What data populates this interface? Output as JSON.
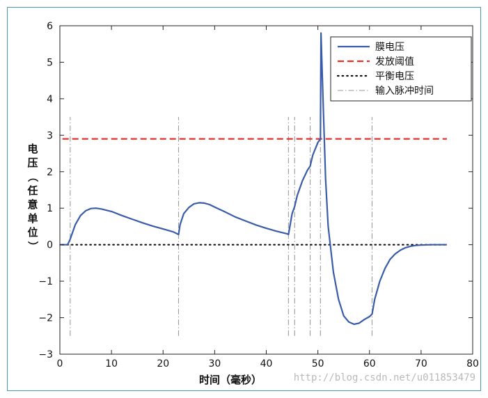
{
  "chart_data": {
    "type": "line",
    "xlabel": "时间（毫秒）",
    "ylabel": "电压（任意单位）",
    "xlim": [
      0,
      80
    ],
    "ylim": [
      -3,
      6
    ],
    "xticks": [
      0,
      10,
      20,
      30,
      40,
      50,
      60,
      70,
      80
    ],
    "yticks": [
      -3,
      -2,
      -1,
      0,
      1,
      2,
      3,
      4,
      5,
      6
    ],
    "grid": false,
    "legend_position": "top-right",
    "legend": [
      "膜电压",
      "发放阈值",
      "平衡电压",
      "输入脉冲时间"
    ],
    "series": [
      {
        "name": "膜电压",
        "style": "solid",
        "color": "#3a5ba8",
        "x": [
          0,
          1.5,
          2,
          3,
          4,
          5,
          6,
          7,
          8,
          10,
          12,
          14,
          16,
          18,
          20,
          22,
          23,
          23.3,
          24,
          25,
          26,
          27,
          28,
          29,
          30,
          32,
          34,
          36,
          38,
          40,
          42,
          44,
          44.3,
          45,
          45.5,
          46,
          47,
          48,
          48.5,
          49,
          50,
          50.5,
          50.6,
          51,
          51.5,
          52,
          53,
          54,
          55,
          56,
          57,
          58,
          59,
          60,
          60.5,
          61,
          62,
          63,
          64,
          65,
          66,
          67,
          68,
          69,
          70,
          72,
          75
        ],
        "y": [
          0,
          0,
          0.15,
          0.55,
          0.8,
          0.93,
          0.99,
          1.0,
          0.98,
          0.91,
          0.8,
          0.7,
          0.6,
          0.51,
          0.43,
          0.35,
          0.28,
          0.55,
          0.85,
          1.02,
          1.12,
          1.15,
          1.14,
          1.1,
          1.03,
          0.9,
          0.76,
          0.65,
          0.54,
          0.45,
          0.37,
          0.3,
          0.28,
          0.85,
          1.05,
          1.35,
          1.75,
          2.05,
          2.15,
          2.45,
          2.8,
          2.9,
          5.8,
          4.0,
          1.8,
          0.5,
          -0.75,
          -1.5,
          -1.95,
          -2.12,
          -2.18,
          -2.15,
          -2.05,
          -1.97,
          -1.9,
          -1.5,
          -1.0,
          -0.65,
          -0.4,
          -0.25,
          -0.15,
          -0.08,
          -0.04,
          -0.02,
          -0.01,
          0,
          0
        ]
      },
      {
        "name": "发放阈值",
        "style": "dashed",
        "color": "#e8302a",
        "x": [
          0.5,
          75
        ],
        "y": [
          2.9,
          2.9
        ]
      },
      {
        "name": "平衡电压",
        "style": "dotted",
        "color": "#111111",
        "x": [
          0.5,
          75
        ],
        "y": [
          0,
          0
        ]
      },
      {
        "name": "输入脉冲时间",
        "style": "dashdot",
        "color": "#9a9a9a",
        "spike_times": [
          2,
          23,
          44.3,
          45.5,
          48.5,
          50.5,
          60.5
        ],
        "y_range": [
          -2.5,
          3.5
        ]
      }
    ]
  },
  "watermark": "http://blog.csdn.net/u011853479"
}
